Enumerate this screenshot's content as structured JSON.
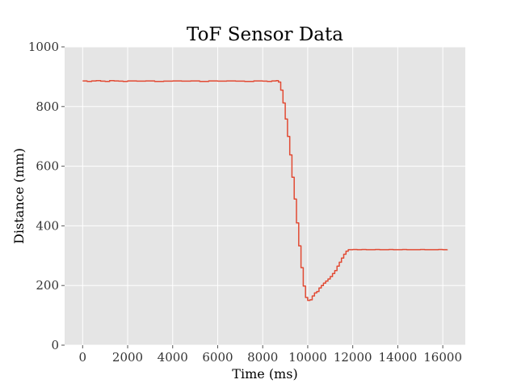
{
  "chart_data": {
    "type": "line",
    "title": "ToF Sensor Data",
    "xlabel": "Time (ms)",
    "ylabel": "Distance (mm)",
    "xlim": [
      -800,
      17000
    ],
    "ylim": [
      0,
      1000
    ],
    "xticks": [
      0,
      2000,
      4000,
      6000,
      8000,
      10000,
      12000,
      14000,
      16000
    ],
    "yticks": [
      0,
      200,
      400,
      600,
      800,
      1000
    ],
    "grid": true,
    "background_color": "#e5e5e5",
    "grid_color": "#ffffff",
    "series": [
      {
        "color": "#e24a33",
        "x": [
          0,
          200,
          400,
          600,
          800,
          1000,
          1200,
          1400,
          1600,
          1800,
          2000,
          2400,
          2800,
          3200,
          3600,
          4000,
          4400,
          4800,
          5200,
          5600,
          6000,
          6400,
          6800,
          7200,
          7600,
          8000,
          8200,
          8400,
          8600,
          8700,
          8800,
          8900,
          9000,
          9100,
          9200,
          9300,
          9400,
          9500,
          9600,
          9700,
          9800,
          9900,
          10000,
          10100,
          10200,
          10300,
          10400,
          10500,
          10600,
          10700,
          10800,
          10900,
          11000,
          11100,
          11200,
          11300,
          11400,
          11500,
          11600,
          11700,
          11800,
          11900,
          12000,
          12200,
          12400,
          12600,
          12800,
          13000,
          13200,
          13400,
          13600,
          13800,
          14000,
          14200,
          14400,
          14600,
          14800,
          15000,
          15200,
          15400,
          15600,
          15800,
          16000,
          16200
        ],
        "y": [
          886,
          884,
          886,
          887,
          885,
          884,
          887,
          886,
          885,
          884,
          886,
          885,
          886,
          884,
          885,
          886,
          885,
          886,
          884,
          886,
          885,
          886,
          885,
          884,
          886,
          885,
          884,
          886,
          887,
          882,
          855,
          812,
          758,
          700,
          638,
          563,
          490,
          410,
          333,
          260,
          198,
          160,
          150,
          152,
          165,
          175,
          180,
          192,
          200,
          208,
          215,
          222,
          230,
          240,
          250,
          265,
          278,
          292,
          305,
          315,
          320,
          320,
          321,
          320,
          321,
          320,
          320,
          321,
          320,
          320,
          321,
          320,
          320,
          321,
          320,
          320,
          320,
          321,
          320,
          320,
          320,
          321,
          320,
          321
        ]
      }
    ]
  }
}
